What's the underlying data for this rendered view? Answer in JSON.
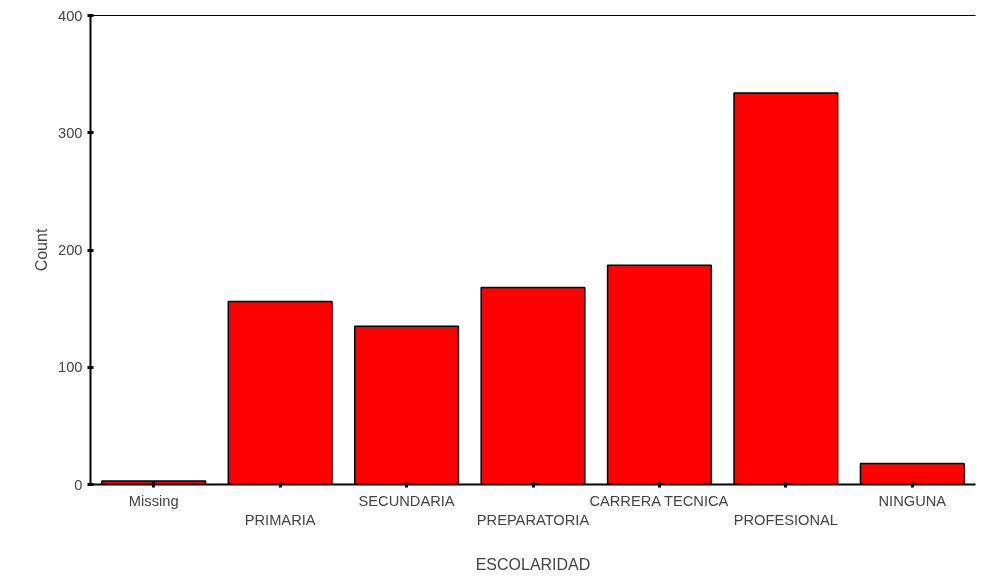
{
  "chart_data": {
    "type": "bar",
    "xlabel": "ESCOLARIDAD",
    "ylabel": "Count",
    "categories": [
      "Missing",
      "PRIMARIA",
      "SECUNDARIA",
      "PREPARATORIA",
      "CARRERA TECNICA",
      "PROFESIONAL",
      "NINGUNA"
    ],
    "values": [
      3,
      156,
      135,
      168,
      187,
      334,
      18
    ],
    "color": "#ff0000",
    "ylim": [
      0,
      400
    ],
    "yticks": [
      0,
      100,
      200,
      300,
      400
    ],
    "grid": false
  }
}
